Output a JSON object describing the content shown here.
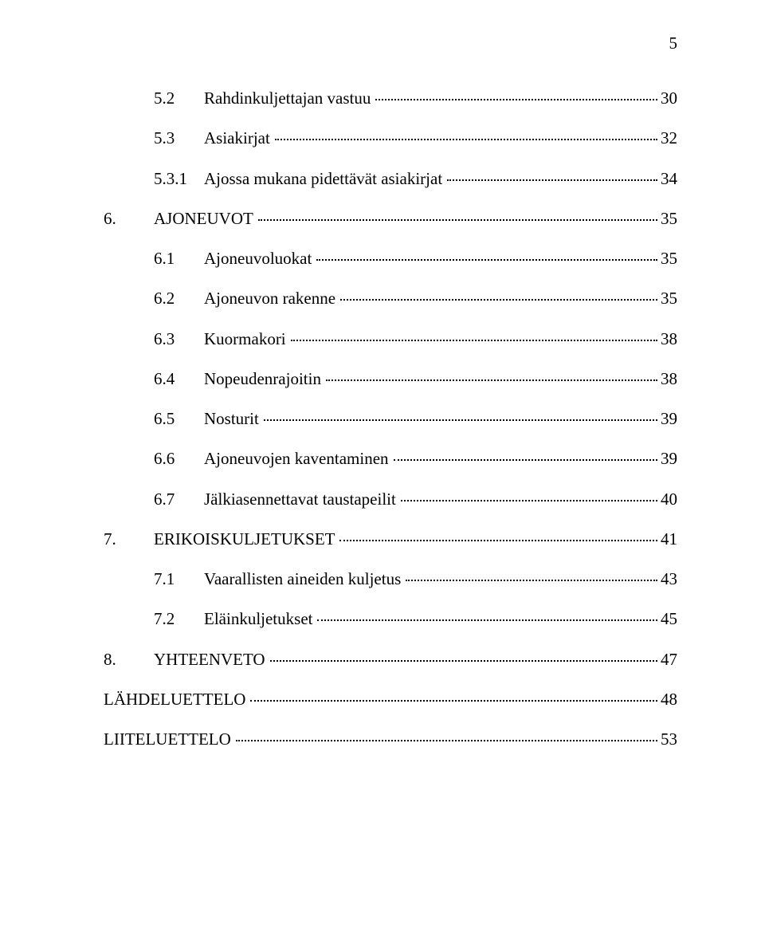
{
  "page_number": "5",
  "toc": [
    {
      "level": "b",
      "num": "5.2",
      "title": "Rahdinkuljettajan vastuu",
      "page": "30"
    },
    {
      "level": "b",
      "num": "5.3",
      "title": "Asiakirjat",
      "page": "32"
    },
    {
      "level": "b",
      "num": "5.3.1",
      "title": "Ajossa mukana pidettävät asiakirjat",
      "page": "34"
    },
    {
      "level": "top",
      "num": "6.",
      "title": "AJONEUVOT",
      "page": "35"
    },
    {
      "level": "b",
      "num": "6.1",
      "title": "Ajoneuvoluokat",
      "page": "35"
    },
    {
      "level": "b",
      "num": "6.2",
      "title": "Ajoneuvon rakenne",
      "page": "35"
    },
    {
      "level": "b",
      "num": "6.3",
      "title": "Kuormakori",
      "page": "38"
    },
    {
      "level": "b",
      "num": "6.4",
      "title": "Nopeudenrajoitin",
      "page": "38"
    },
    {
      "level": "b",
      "num": "6.5",
      "title": "Nosturit",
      "page": "39"
    },
    {
      "level": "b",
      "num": "6.6",
      "title": "Ajoneuvojen kaventaminen",
      "page": "39"
    },
    {
      "level": "b",
      "num": "6.7",
      "title": "Jälkiasennettavat taustapeilit",
      "page": "40"
    },
    {
      "level": "top",
      "num": "7.",
      "title": "ERIKOISKULJETUKSET",
      "page": "41"
    },
    {
      "level": "b",
      "num": "7.1",
      "title": "Vaarallisten aineiden kuljetus",
      "page": "43"
    },
    {
      "level": "b",
      "num": "7.2",
      "title": "Eläinkuljetukset",
      "page": "45"
    },
    {
      "level": "top",
      "num": "8.",
      "title": "YHTEENVETO",
      "page": "47"
    },
    {
      "level": "flat",
      "num": "",
      "title": "LÄHDELUETTELO",
      "page": "48"
    },
    {
      "level": "flat",
      "num": "",
      "title": "LIITELUETTELO",
      "page": "53"
    }
  ]
}
